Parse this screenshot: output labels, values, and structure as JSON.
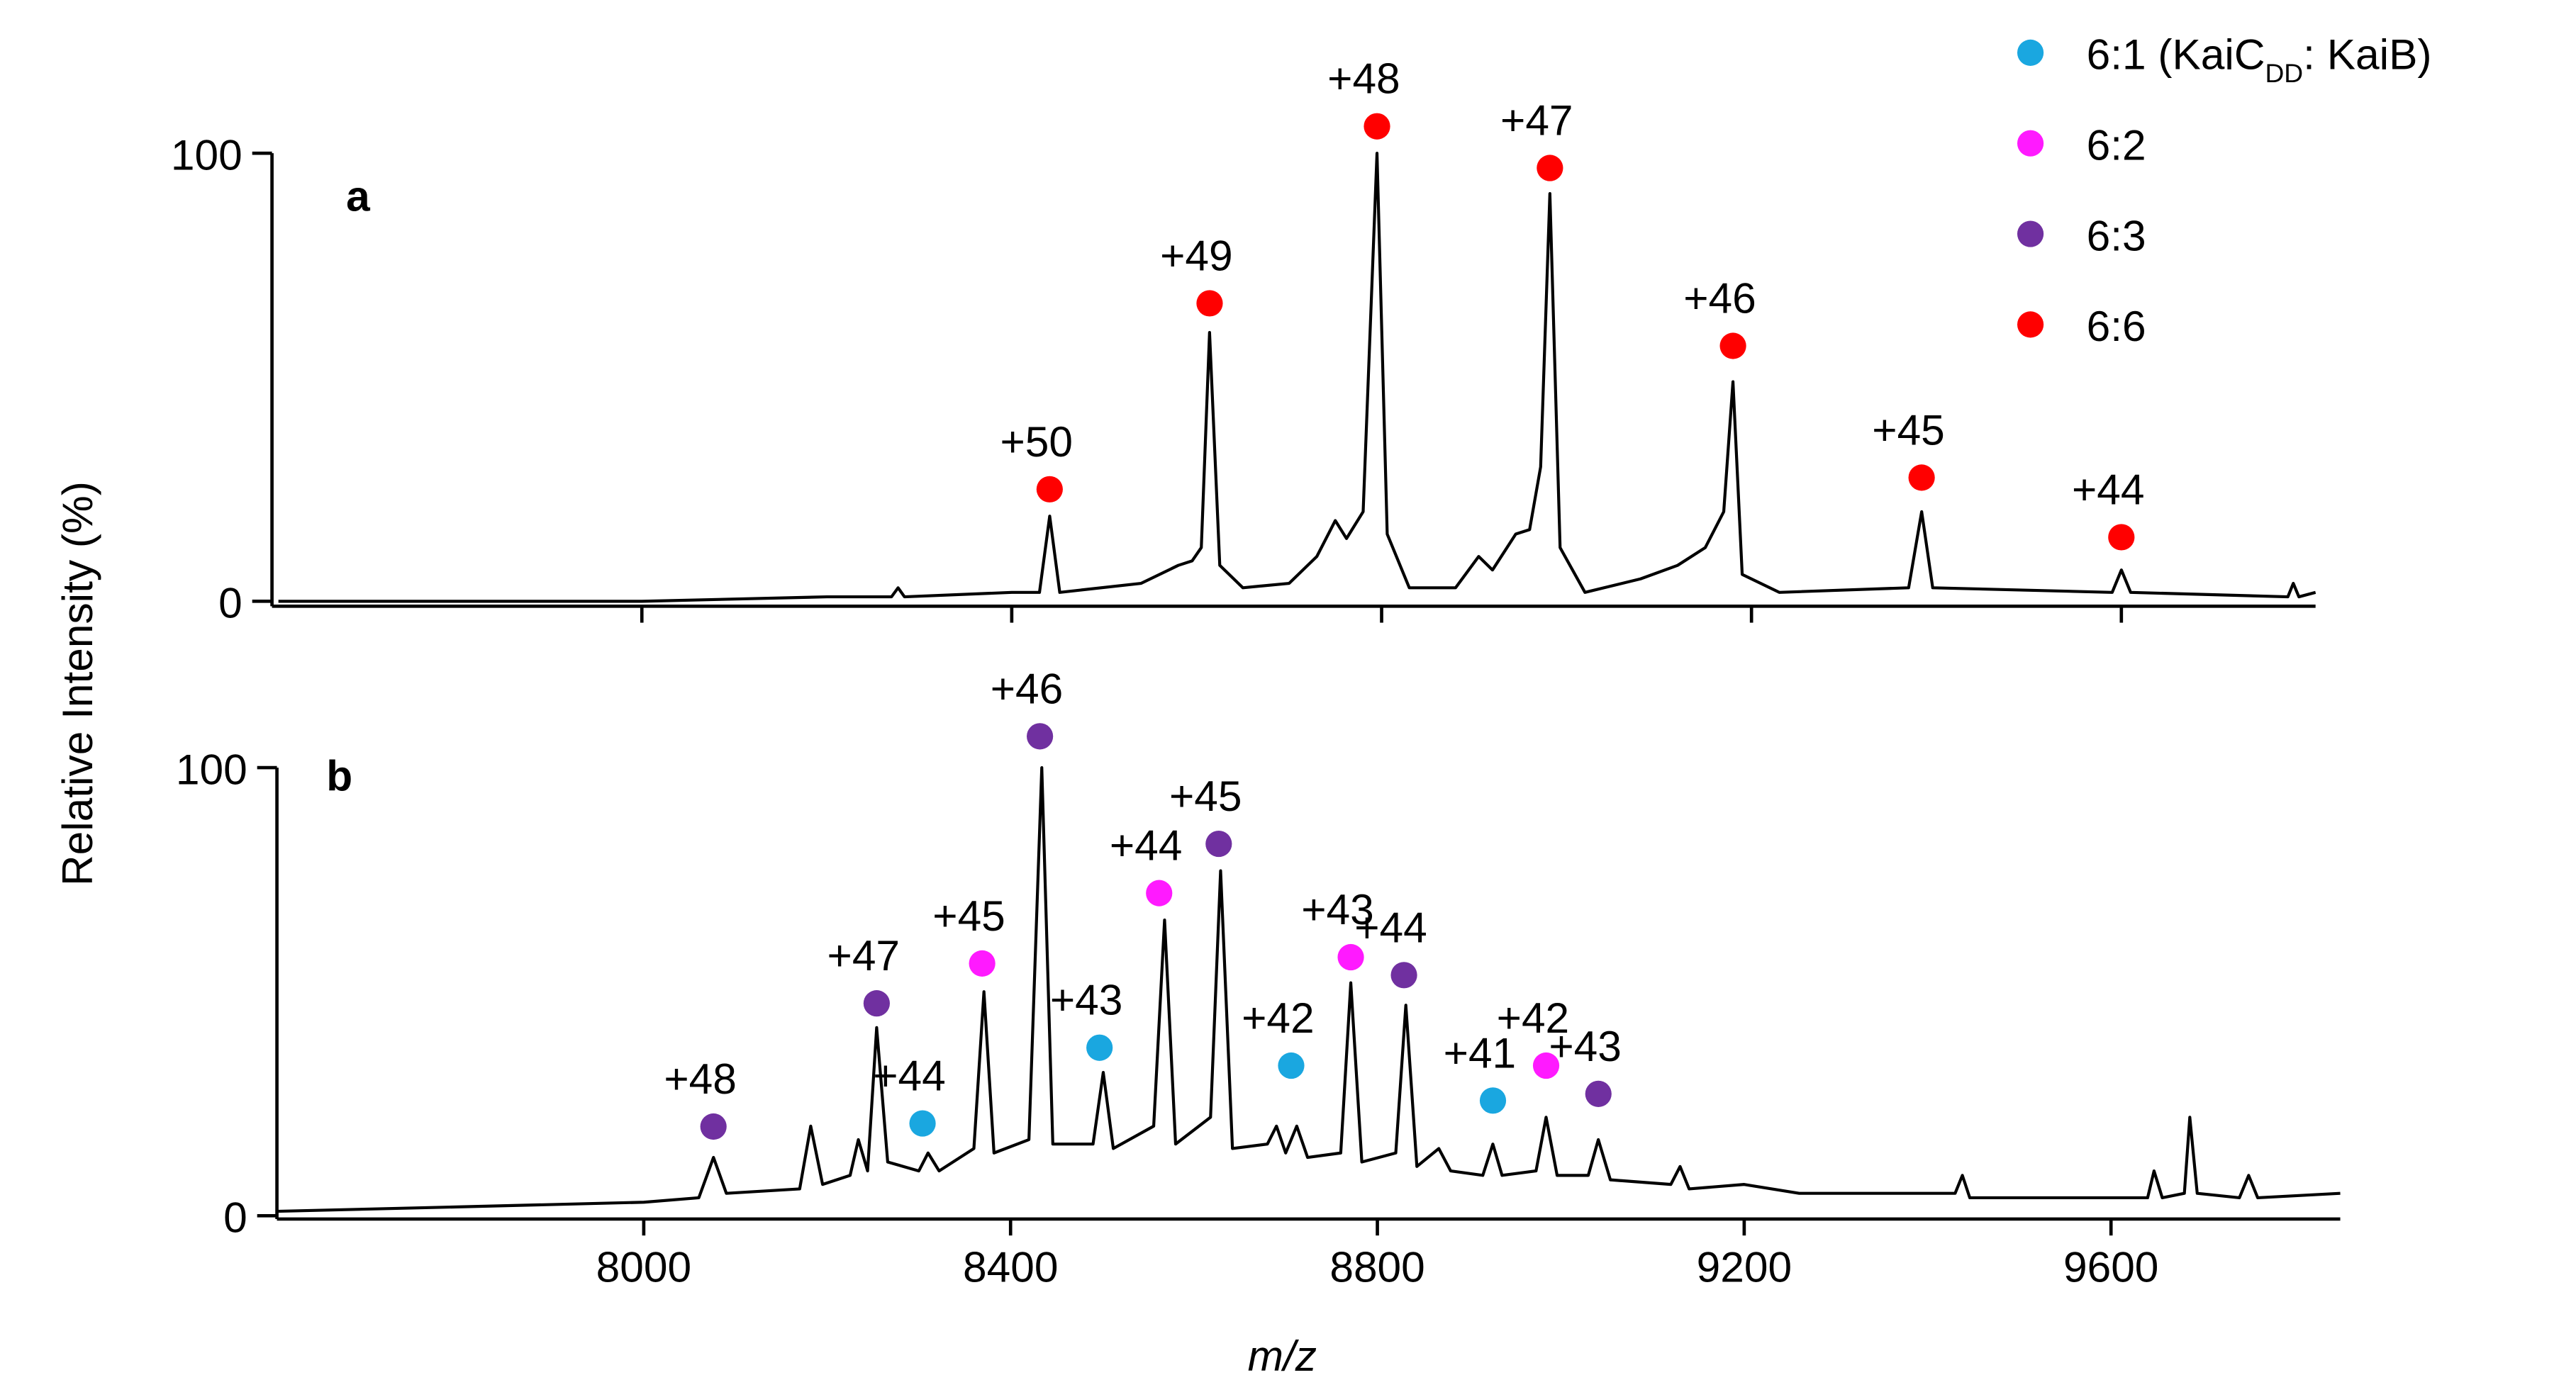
{
  "chart_data": [
    {
      "type": "line",
      "panel": "a",
      "color": "#000000",
      "xlim": [
        7600,
        9810
      ],
      "ylim": [
        0,
        100
      ],
      "yticks": [
        0,
        100
      ],
      "xticks": [
        8000,
        8400,
        8800,
        9200,
        9600
      ],
      "xtick_labels": false,
      "x": [
        7607,
        8000,
        8200,
        8270,
        8277,
        8284,
        8400,
        8430,
        8441,
        8452,
        8540,
        8580,
        8595,
        8605,
        8614,
        8625,
        8650,
        8700,
        8730,
        8750,
        8762,
        8780,
        8795,
        8806,
        8830,
        8880,
        8905,
        8920,
        8945,
        8960,
        8972,
        8982,
        8993,
        9020,
        9080,
        9120,
        9150,
        9170,
        9180,
        9190,
        9230,
        9370,
        9384,
        9396,
        9590,
        9600,
        9610,
        9780,
        9786,
        9792,
        9810
      ],
      "values": [
        0,
        0,
        1,
        1,
        3,
        1,
        2,
        2,
        19,
        2,
        4,
        8,
        9,
        12,
        60,
        8,
        3,
        4,
        10,
        18,
        14,
        20,
        100,
        15,
        3,
        3,
        10,
        7,
        15,
        16,
        30,
        91,
        12,
        2,
        5,
        8,
        12,
        20,
        49,
        6,
        2,
        3,
        20,
        3,
        2,
        7,
        2,
        1,
        4,
        1,
        2
      ],
      "series": [
        {
          "name": "6:6",
          "color": "#ff0000",
          "labels": [
            "+50",
            "+49",
            "+48",
            "+47",
            "+46",
            "+45",
            "+44"
          ],
          "x": [
            8441,
            8614,
            8795,
            8982,
            9180,
            9384,
            9600
          ],
          "values": [
            25,
            66.5,
            106,
            96.7,
            57,
            27.6,
            14.3
          ]
        }
      ]
    },
    {
      "type": "line",
      "panel": "b",
      "color": "#000000",
      "xlim": [
        7600,
        9850
      ],
      "ylim": [
        0,
        100
      ],
      "yticks": [
        0,
        100
      ],
      "xticks": [
        8000,
        8400,
        8800,
        9200,
        9600
      ],
      "xtick_labels": true,
      "xlabel": "m/z",
      "ylabel": "Relative Intensity (%)",
      "x": [
        7600,
        7800,
        8000,
        8060,
        8076,
        8090,
        8170,
        8182,
        8195,
        8225,
        8234,
        8244,
        8254,
        8266,
        8300,
        8310,
        8322,
        8360,
        8371,
        8382,
        8420,
        8434,
        8446,
        8490,
        8501,
        8512,
        8556,
        8568,
        8580,
        8618,
        8629,
        8642,
        8680,
        8690,
        8700,
        8712,
        8724,
        8760,
        8771,
        8783,
        8820,
        8831,
        8843,
        8867,
        8880,
        8915,
        8926,
        8936,
        8973,
        8984,
        8996,
        9030,
        9041,
        9054,
        9120,
        9130,
        9140,
        9200,
        9260,
        9430,
        9438,
        9446,
        9600,
        9640,
        9647,
        9656,
        9680,
        9686,
        9694,
        9740,
        9750,
        9760,
        9850
      ],
      "values": [
        1,
        2,
        3,
        4,
        13,
        5,
        6,
        20,
        7,
        9,
        17,
        10,
        42,
        12,
        10,
        14,
        10,
        15,
        50,
        14,
        17,
        100,
        16,
        16,
        32,
        15,
        20,
        66,
        16,
        22,
        77,
        15,
        16,
        20,
        14,
        20,
        13,
        14,
        52,
        12,
        14,
        47,
        11,
        15,
        10,
        9,
        16,
        9,
        10,
        22,
        9,
        9,
        17,
        8,
        7,
        11,
        6,
        7,
        5,
        5,
        9,
        4,
        4,
        4,
        10,
        4,
        5,
        22,
        5,
        4,
        9,
        4,
        5
      ],
      "series": [
        {
          "name": [
            "6:1 (KaiC",
            "DD",
            ": KaiB)"
          ],
          "color": "#1aa7e0",
          "labels": [
            "+44",
            "+43",
            "+42",
            "+41"
          ],
          "x": [
            8304,
            8497,
            8706,
            8926
          ],
          "values": [
            20.6,
            37.5,
            33.5,
            25.7
          ]
        },
        {
          "name": "6:2",
          "color": "#ff1aff",
          "labels": [
            "+45",
            "+44",
            "+43",
            "+42"
          ],
          "x": [
            8369,
            8562,
            8771,
            8984
          ],
          "values": [
            56.3,
            72,
            57.7,
            33.5
          ]
        },
        {
          "name": "6:3",
          "color": "#7030a0",
          "labels": [
            "+48",
            "+47",
            "+46",
            "+45",
            "+44",
            "+43"
          ],
          "x": [
            8076,
            8254,
            8432,
            8627,
            8829,
            9041
          ],
          "values": [
            19.9,
            47.4,
            107,
            83,
            53.7,
            27.2
          ]
        }
      ]
    }
  ]
}
